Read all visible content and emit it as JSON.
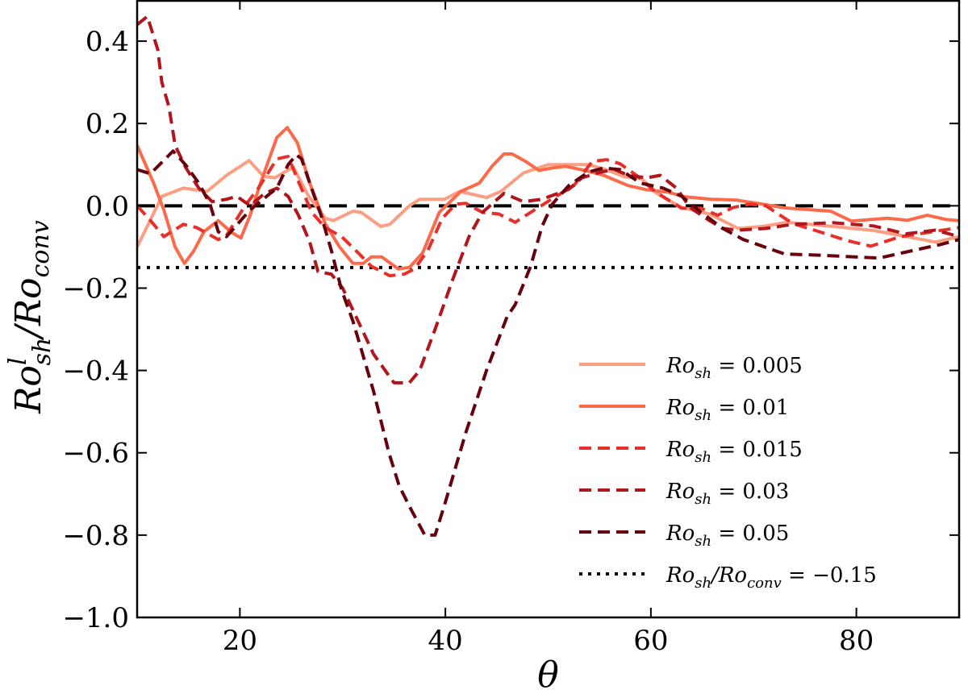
{
  "chart_data": {
    "type": "line",
    "title": "",
    "xlabel": "θ",
    "ylabel": {
      "base": "Ro",
      "sup": "l",
      "sub": "sh",
      "mid": "/Ro",
      "sub2": "conv"
    },
    "xlim": [
      10,
      90
    ],
    "ylim": [
      -1.0,
      0.5
    ],
    "xticks": [
      20,
      40,
      60,
      80
    ],
    "xtick_labels": [
      "20",
      "40",
      "60",
      "80"
    ],
    "yticks": [
      0.4,
      0.2,
      0.0,
      -0.2,
      -0.4,
      -0.6,
      -0.8,
      -1.0
    ],
    "ytick_labels": [
      "0.4",
      "0.2",
      "0.0",
      "−0.2",
      "−0.4",
      "−0.6",
      "−0.8",
      "−1.0"
    ],
    "grid": false,
    "legend_placement": "lower-right",
    "series": [
      {
        "name": "Ro_sh = 0.005",
        "label": {
          "base": "Ro",
          "sub": "sh",
          "rest": " = 0.005"
        },
        "color": "#fc9e82",
        "style": "solid",
        "x": [
          10,
          12.4,
          14.5,
          16.8,
          18.7,
          20.9,
          22.3,
          23.4,
          25.2,
          26.7,
          28.3,
          29.1,
          31,
          31.8,
          33.7,
          34.6,
          36.5,
          37.5,
          39.9,
          41.4,
          44,
          45.4,
          47.6,
          50,
          53.9,
          55.4,
          57.5,
          59,
          60.6,
          63,
          65.7,
          68.5,
          70.9,
          73.2,
          77.7,
          81.7,
          87.7,
          90
        ],
        "y": [
          -0.1,
          0.023,
          0.043,
          0.035,
          0.074,
          0.11,
          0.072,
          0.068,
          0.094,
          0.023,
          -0.03,
          -0.036,
          -0.013,
          -0.016,
          -0.05,
          -0.045,
          0.0,
          0.016,
          0.016,
          0.035,
          0.02,
          0.035,
          0.08,
          0.1,
          0.1,
          0.09,
          0.07,
          0.068,
          0.03,
          -0.004,
          -0.02,
          -0.055,
          -0.05,
          -0.04,
          -0.05,
          -0.06,
          -0.088,
          -0.075
        ]
      },
      {
        "name": "Ro_sh = 0.01",
        "label": {
          "base": "Ro",
          "sub": "sh",
          "rest": " = 0.01"
        },
        "color": "#fb6a4a",
        "style": "solid",
        "x": [
          10,
          11.6,
          12.6,
          13.7,
          14.6,
          15.5,
          16.5,
          17.9,
          19.2,
          20.1,
          21,
          22,
          23.6,
          24.6,
          25.6,
          26.8,
          28.3,
          29.7,
          31,
          32,
          32.8,
          33.8,
          35.4,
          36.5,
          37.8,
          39.4,
          41.5,
          43.3,
          44.6,
          45.7,
          46.5,
          47.8,
          49.1,
          50.4,
          51.7,
          53.9,
          55.4,
          57.8,
          59.6,
          61.7,
          63.3,
          65.9,
          68.3,
          70.9,
          73,
          77.5,
          79.5,
          83,
          85,
          86.9,
          88.7,
          90
        ],
        "y": [
          0.147,
          0.055,
          -0.01,
          -0.1,
          -0.14,
          -0.11,
          -0.063,
          -0.036,
          -0.065,
          -0.078,
          -0.023,
          0.055,
          0.166,
          0.19,
          0.153,
          0.055,
          -0.043,
          -0.1,
          -0.14,
          -0.14,
          -0.124,
          -0.124,
          -0.153,
          -0.15,
          -0.114,
          -0.016,
          0.035,
          0.055,
          0.098,
          0.126,
          0.126,
          0.108,
          0.086,
          0.092,
          0.096,
          0.084,
          0.074,
          0.049,
          0.039,
          0.033,
          0.022,
          0.016,
          0.014,
          0.004,
          -0.005,
          -0.013,
          -0.037,
          -0.03,
          -0.035,
          -0.023,
          -0.033,
          -0.036
        ]
      },
      {
        "name": "Ro_sh = 0.015",
        "label": {
          "base": "Ro",
          "sub": "sh",
          "rest": " = 0.015"
        },
        "color": "#e8302a",
        "style": "dashed",
        "x": [
          10,
          11.3,
          12.6,
          14.5,
          15.8,
          17.9,
          18.7,
          20.5,
          21.8,
          22.8,
          23.6,
          24.7,
          25.7,
          27,
          28.3,
          29.9,
          31.5,
          32.8,
          34.6,
          36,
          37,
          38.3,
          39.7,
          41,
          42,
          43.6,
          45.2,
          46.8,
          48.3,
          50.2,
          52.5,
          54.3,
          55.7,
          57,
          58.6,
          60.4,
          61.7,
          63,
          64.9,
          66.5,
          68,
          69.6,
          71.2,
          73.8,
          76.4,
          79,
          81.4,
          84.3,
          86.9,
          90
        ],
        "y": [
          0.0,
          -0.036,
          -0.075,
          -0.045,
          -0.053,
          -0.082,
          -0.072,
          0.0,
          0.043,
          0.082,
          0.114,
          0.12,
          0.059,
          -0.016,
          -0.053,
          -0.075,
          -0.114,
          -0.147,
          -0.17,
          -0.166,
          -0.153,
          -0.108,
          -0.03,
          0.004,
          0.006,
          -0.016,
          -0.02,
          -0.04,
          -0.016,
          0.014,
          0.049,
          0.108,
          0.112,
          0.102,
          0.074,
          0.035,
          0.014,
          -0.006,
          -0.006,
          -0.023,
          -0.004,
          0.004,
          0.0,
          -0.043,
          -0.063,
          -0.084,
          -0.098,
          -0.075,
          -0.065,
          -0.053
        ]
      },
      {
        "name": "Ro_sh = 0.03",
        "label": {
          "base": "Ro",
          "sub": "sh",
          "rest": " = 0.03"
        },
        "color": "#b3151d",
        "style": "dashed",
        "x": [
          10,
          11,
          12,
          12.4,
          13.1,
          13.7,
          14.7,
          16,
          17.3,
          18.7,
          19.7,
          21,
          22.4,
          23.6,
          24.7,
          25.7,
          26.8,
          27.6,
          28.9,
          30,
          31.5,
          33,
          35,
          36.5,
          37.5,
          39,
          40.7,
          42.3,
          43.6,
          45.7,
          47.6,
          49.4,
          52,
          53.3,
          55.1,
          56.5,
          57.8,
          59.6,
          60.9,
          62.5,
          63.8,
          65.7,
          67,
          68.5,
          71.2,
          73.8,
          77.7,
          81.7,
          84.8,
          87.7,
          90
        ],
        "y": [
          0.44,
          0.46,
          0.38,
          0.3,
          0.24,
          0.147,
          0.094,
          0.043,
          0.01,
          0.016,
          0.023,
          0.0,
          0.03,
          0.043,
          0.023,
          -0.023,
          -0.088,
          -0.16,
          -0.166,
          -0.2,
          -0.28,
          -0.36,
          -0.43,
          -0.43,
          -0.4,
          -0.3,
          -0.18,
          -0.075,
          -0.016,
          0.03,
          0.01,
          0.016,
          0.04,
          0.068,
          0.082,
          0.088,
          0.074,
          0.068,
          0.074,
          0.043,
          -0.004,
          -0.036,
          -0.055,
          -0.059,
          -0.055,
          -0.045,
          -0.041,
          -0.049,
          -0.068,
          -0.059,
          -0.075
        ]
      },
      {
        "name": "Ro_sh = 0.05",
        "label": {
          "base": "Ro",
          "sub": "sh",
          "rest": " = 0.05"
        },
        "color": "#67000d",
        "style": "dashed",
        "x": [
          10,
          11.3,
          13.5,
          14.7,
          16,
          17.1,
          17.9,
          18.7,
          19.4,
          21,
          22.6,
          23.6,
          24.7,
          25.5,
          26,
          26.8,
          27.9,
          28.9,
          29.9,
          31,
          33,
          34.5,
          35.5,
          36.5,
          38,
          39,
          40,
          42,
          44,
          46,
          46.8,
          48.3,
          49.4,
          50.4,
          52,
          53.9,
          55.4,
          57,
          59,
          61.2,
          63,
          64.9,
          67,
          69,
          70.5,
          73,
          76.4,
          82.2,
          85.6,
          88.2,
          90
        ],
        "y": [
          0.088,
          0.078,
          0.133,
          0.1,
          0.055,
          0.004,
          -0.063,
          -0.075,
          -0.055,
          -0.01,
          0.023,
          0.043,
          0.1,
          0.124,
          0.114,
          0.055,
          -0.023,
          -0.108,
          -0.205,
          -0.28,
          -0.45,
          -0.6,
          -0.68,
          -0.73,
          -0.8,
          -0.8,
          -0.72,
          -0.55,
          -0.4,
          -0.27,
          -0.24,
          -0.147,
          -0.05,
          0.004,
          0.049,
          0.082,
          0.092,
          0.088,
          0.055,
          0.043,
          0.023,
          -0.016,
          -0.055,
          -0.082,
          -0.095,
          -0.117,
          -0.12,
          -0.127,
          -0.108,
          -0.094,
          -0.082
        ]
      }
    ],
    "reference_lines": [
      {
        "y": 0.0,
        "color": "#000000",
        "style": "dashed"
      },
      {
        "y": -0.15,
        "color": "#000000",
        "style": "dotted",
        "label": {
          "base": "Ro",
          "sub": "sh",
          "mid": "/Ro",
          "sub2": "conv",
          "rest": " = −0.15"
        }
      }
    ]
  }
}
